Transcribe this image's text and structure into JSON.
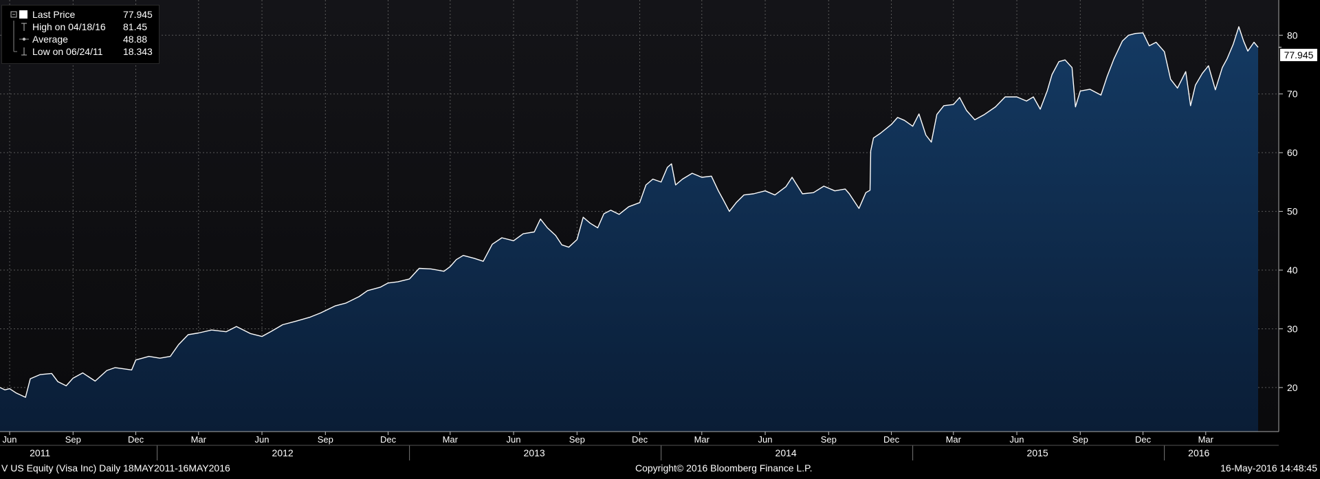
{
  "legend": {
    "items": [
      {
        "label": "Last Price",
        "value": "77.945"
      },
      {
        "label": "High on 04/18/16",
        "value": "81.45"
      },
      {
        "label": "Average",
        "value": "48.88"
      },
      {
        "label": "Low on 06/24/11",
        "value": "18.343"
      }
    ]
  },
  "last_price_tag": "77.945",
  "footer": {
    "ticker": "V US Equity (Visa Inc)  Daily 18MAY2011-16MAY2016",
    "copyright": "Copyright© 2016 Bloomberg Finance L.P.",
    "timestamp": "16-May-2016 14:48:45"
  },
  "colors": {
    "background": "#000000",
    "plot_top": "#141418",
    "area_fill_top": "#143a63",
    "area_fill_bottom": "#0a1d36",
    "line": "#ffffff",
    "grid": "#5a5a5a"
  },
  "chart_data": {
    "type": "area",
    "title": "",
    "xlabel": "",
    "ylabel": "",
    "ylim": [
      12.5,
      86
    ],
    "y_ticks": [
      20,
      30,
      40,
      50,
      60,
      70,
      80
    ],
    "grid": true,
    "legend_position": "top-left",
    "x_range": [
      "2011-05-18",
      "2016-05-16"
    ],
    "month_ticks": [
      {
        "label": "Jun",
        "date": "2011-06-01"
      },
      {
        "label": "Sep",
        "date": "2011-09-01"
      },
      {
        "label": "Dec",
        "date": "2011-12-01"
      },
      {
        "label": "Mar",
        "date": "2012-03-01"
      },
      {
        "label": "Jun",
        "date": "2012-06-01"
      },
      {
        "label": "Sep",
        "date": "2012-09-01"
      },
      {
        "label": "Dec",
        "date": "2012-12-01"
      },
      {
        "label": "Mar",
        "date": "2013-03-01"
      },
      {
        "label": "Jun",
        "date": "2013-06-01"
      },
      {
        "label": "Sep",
        "date": "2013-09-01"
      },
      {
        "label": "Dec",
        "date": "2013-12-01"
      },
      {
        "label": "Mar",
        "date": "2014-03-01"
      },
      {
        "label": "Jun",
        "date": "2014-06-01"
      },
      {
        "label": "Sep",
        "date": "2014-09-01"
      },
      {
        "label": "Dec",
        "date": "2014-12-01"
      },
      {
        "label": "Mar",
        "date": "2015-03-01"
      },
      {
        "label": "Jun",
        "date": "2015-06-01"
      },
      {
        "label": "Sep",
        "date": "2015-09-01"
      },
      {
        "label": "Dec",
        "date": "2015-12-01"
      },
      {
        "label": "Mar",
        "date": "2016-03-01"
      }
    ],
    "year_labels": [
      {
        "label": "2011",
        "date": "2011-07-15"
      },
      {
        "label": "2012",
        "date": "2012-07-01"
      },
      {
        "label": "2013",
        "date": "2013-07-01"
      },
      {
        "label": "2014",
        "date": "2014-07-01"
      },
      {
        "label": "2015",
        "date": "2015-07-01"
      },
      {
        "label": "2016",
        "date": "2016-02-20"
      }
    ],
    "year_dividers": [
      "2012-01-01",
      "2013-01-01",
      "2014-01-01",
      "2015-01-01",
      "2016-01-01"
    ],
    "series": [
      {
        "name": "Last Price",
        "points": [
          [
            "2011-05-18",
            20.0
          ],
          [
            "2011-05-25",
            19.6
          ],
          [
            "2011-06-01",
            19.8
          ],
          [
            "2011-06-10",
            19.1
          ],
          [
            "2011-06-24",
            18.34
          ],
          [
            "2011-07-01",
            21.5
          ],
          [
            "2011-07-15",
            22.2
          ],
          [
            "2011-08-01",
            22.4
          ],
          [
            "2011-08-10",
            21.0
          ],
          [
            "2011-08-22",
            20.3
          ],
          [
            "2011-09-01",
            21.6
          ],
          [
            "2011-09-15",
            22.5
          ],
          [
            "2011-10-03",
            21.1
          ],
          [
            "2011-10-20",
            22.9
          ],
          [
            "2011-11-01",
            23.4
          ],
          [
            "2011-11-25",
            23.0
          ],
          [
            "2011-12-01",
            24.7
          ],
          [
            "2011-12-20",
            25.3
          ],
          [
            "2012-01-05",
            25.0
          ],
          [
            "2012-01-20",
            25.3
          ],
          [
            "2012-02-01",
            27.3
          ],
          [
            "2012-02-15",
            29.0
          ],
          [
            "2012-03-01",
            29.3
          ],
          [
            "2012-03-20",
            29.8
          ],
          [
            "2012-04-10",
            29.5
          ],
          [
            "2012-04-25",
            30.4
          ],
          [
            "2012-05-15",
            29.2
          ],
          [
            "2012-06-01",
            28.7
          ],
          [
            "2012-06-15",
            29.6
          ],
          [
            "2012-07-01",
            30.7
          ],
          [
            "2012-07-20",
            31.3
          ],
          [
            "2012-08-10",
            32.0
          ],
          [
            "2012-08-25",
            32.7
          ],
          [
            "2012-09-15",
            33.9
          ],
          [
            "2012-10-01",
            34.4
          ],
          [
            "2012-10-20",
            35.5
          ],
          [
            "2012-11-01",
            36.5
          ],
          [
            "2012-11-20",
            37.1
          ],
          [
            "2012-12-01",
            37.8
          ],
          [
            "2012-12-15",
            38.0
          ],
          [
            "2013-01-01",
            38.5
          ],
          [
            "2013-01-15",
            40.3
          ],
          [
            "2013-02-01",
            40.2
          ],
          [
            "2013-02-20",
            39.8
          ],
          [
            "2013-03-01",
            40.6
          ],
          [
            "2013-03-10",
            41.8
          ],
          [
            "2013-03-20",
            42.5
          ],
          [
            "2013-04-05",
            42.0
          ],
          [
            "2013-04-18",
            41.5
          ],
          [
            "2013-05-01",
            44.4
          ],
          [
            "2013-05-15",
            45.5
          ],
          [
            "2013-06-01",
            45.0
          ],
          [
            "2013-06-15",
            46.2
          ],
          [
            "2013-07-01",
            46.5
          ],
          [
            "2013-07-10",
            48.7
          ],
          [
            "2013-07-20",
            47.2
          ],
          [
            "2013-08-01",
            45.9
          ],
          [
            "2013-08-10",
            44.3
          ],
          [
            "2013-08-20",
            43.9
          ],
          [
            "2013-09-01",
            45.2
          ],
          [
            "2013-09-10",
            49.0
          ],
          [
            "2013-09-20",
            48.0
          ],
          [
            "2013-10-01",
            47.2
          ],
          [
            "2013-10-10",
            49.6
          ],
          [
            "2013-10-20",
            50.2
          ],
          [
            "2013-11-01",
            49.5
          ],
          [
            "2013-11-15",
            50.8
          ],
          [
            "2013-12-01",
            51.5
          ],
          [
            "2013-12-10",
            54.5
          ],
          [
            "2013-12-20",
            55.5
          ],
          [
            "2014-01-01",
            55.0
          ],
          [
            "2014-01-10",
            57.5
          ],
          [
            "2014-01-16",
            58.1
          ],
          [
            "2014-01-22",
            54.5
          ],
          [
            "2014-02-01",
            55.5
          ],
          [
            "2014-02-15",
            56.5
          ],
          [
            "2014-03-01",
            55.8
          ],
          [
            "2014-03-15",
            56.0
          ],
          [
            "2014-03-25",
            53.5
          ],
          [
            "2014-04-01",
            52.0
          ],
          [
            "2014-04-10",
            50.0
          ],
          [
            "2014-04-20",
            51.5
          ],
          [
            "2014-05-01",
            52.8
          ],
          [
            "2014-05-15",
            53.0
          ],
          [
            "2014-06-01",
            53.5
          ],
          [
            "2014-06-15",
            52.8
          ],
          [
            "2014-07-01",
            54.2
          ],
          [
            "2014-07-10",
            55.8
          ],
          [
            "2014-07-25",
            53.0
          ],
          [
            "2014-08-10",
            53.2
          ],
          [
            "2014-08-25",
            54.3
          ],
          [
            "2014-09-10",
            53.5
          ],
          [
            "2014-09-25",
            53.8
          ],
          [
            "2014-10-01",
            53.0
          ],
          [
            "2014-10-15",
            50.5
          ],
          [
            "2014-10-25",
            53.2
          ],
          [
            "2014-10-31",
            53.6
          ],
          [
            "2014-11-01",
            60.3
          ],
          [
            "2014-11-05",
            62.5
          ],
          [
            "2014-11-15",
            63.3
          ],
          [
            "2014-12-01",
            64.8
          ],
          [
            "2014-12-10",
            66.0
          ],
          [
            "2014-12-20",
            65.5
          ],
          [
            "2015-01-01",
            64.5
          ],
          [
            "2015-01-10",
            66.6
          ],
          [
            "2015-01-20",
            63.0
          ],
          [
            "2015-01-28",
            61.8
          ],
          [
            "2015-02-05",
            66.5
          ],
          [
            "2015-02-15",
            68.0
          ],
          [
            "2015-03-01",
            68.2
          ],
          [
            "2015-03-10",
            69.4
          ],
          [
            "2015-03-20",
            67.2
          ],
          [
            "2015-04-01",
            65.6
          ],
          [
            "2015-04-15",
            66.5
          ],
          [
            "2015-05-01",
            67.8
          ],
          [
            "2015-05-15",
            69.5
          ],
          [
            "2015-06-01",
            69.5
          ],
          [
            "2015-06-15",
            68.8
          ],
          [
            "2015-06-25",
            69.5
          ],
          [
            "2015-07-05",
            67.4
          ],
          [
            "2015-07-15",
            70.5
          ],
          [
            "2015-07-22",
            73.3
          ],
          [
            "2015-08-01",
            75.5
          ],
          [
            "2015-08-10",
            75.8
          ],
          [
            "2015-08-20",
            74.5
          ],
          [
            "2015-08-25",
            67.8
          ],
          [
            "2015-09-01",
            70.5
          ],
          [
            "2015-09-15",
            70.8
          ],
          [
            "2015-10-01",
            69.8
          ],
          [
            "2015-10-10",
            73.0
          ],
          [
            "2015-10-20",
            76.0
          ],
          [
            "2015-11-01",
            79.0
          ],
          [
            "2015-11-10",
            80.0
          ],
          [
            "2015-11-20",
            80.3
          ],
          [
            "2015-12-01",
            80.4
          ],
          [
            "2015-12-10",
            78.2
          ],
          [
            "2015-12-20",
            78.8
          ],
          [
            "2016-01-01",
            77.2
          ],
          [
            "2016-01-10",
            72.5
          ],
          [
            "2016-01-20",
            71.0
          ],
          [
            "2016-02-01",
            73.8
          ],
          [
            "2016-02-08",
            68.0
          ],
          [
            "2016-02-15",
            71.5
          ],
          [
            "2016-02-25",
            73.5
          ],
          [
            "2016-03-05",
            74.8
          ],
          [
            "2016-03-15",
            70.7
          ],
          [
            "2016-03-25",
            74.5
          ],
          [
            "2016-04-01",
            76.0
          ],
          [
            "2016-04-10",
            78.5
          ],
          [
            "2016-04-18",
            81.45
          ],
          [
            "2016-04-25",
            79.0
          ],
          [
            "2016-05-01",
            77.3
          ],
          [
            "2016-05-10",
            78.8
          ],
          [
            "2016-05-16",
            77.945
          ]
        ]
      }
    ]
  }
}
